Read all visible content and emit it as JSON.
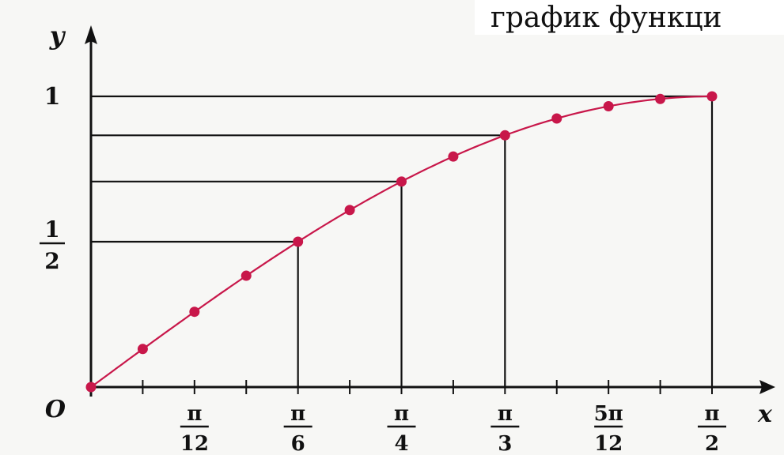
{
  "header": {
    "caption": "график функци"
  },
  "chart_data": {
    "type": "line",
    "title": "",
    "xlabel": "x",
    "ylabel": "y",
    "origin_label": "O",
    "xlim": [
      0,
      1.5708
    ],
    "ylim": [
      0,
      1
    ],
    "x_ticks": [
      {
        "num": "π",
        "den": "12",
        "value": 0.2618
      },
      {
        "num": "π",
        "den": "6",
        "value": 0.5236
      },
      {
        "num": "π",
        "den": "4",
        "value": 0.7854
      },
      {
        "num": "π",
        "den": "3",
        "value": 1.0472
      },
      {
        "num": "5π",
        "den": "12",
        "value": 1.309
      },
      {
        "num": "π",
        "den": "2",
        "value": 1.5708
      }
    ],
    "y_ticks": [
      {
        "num": "1",
        "den": "2",
        "value": 0.5
      },
      {
        "label": "1",
        "value": 1.0
      }
    ],
    "series": [
      {
        "color": "#c8174a",
        "x": [
          0,
          0.1309,
          0.2618,
          0.3927,
          0.5236,
          0.6545,
          0.7854,
          0.9163,
          1.0472,
          1.1781,
          1.309,
          1.4399,
          1.5708
        ],
        "y": [
          0,
          0.131,
          0.259,
          0.383,
          0.5,
          0.609,
          0.707,
          0.793,
          0.866,
          0.924,
          0.966,
          0.991,
          1.0
        ]
      }
    ],
    "guide_lines_x": [
      0.5236,
      0.7854,
      1.0472,
      1.5708
    ],
    "grid": false
  }
}
